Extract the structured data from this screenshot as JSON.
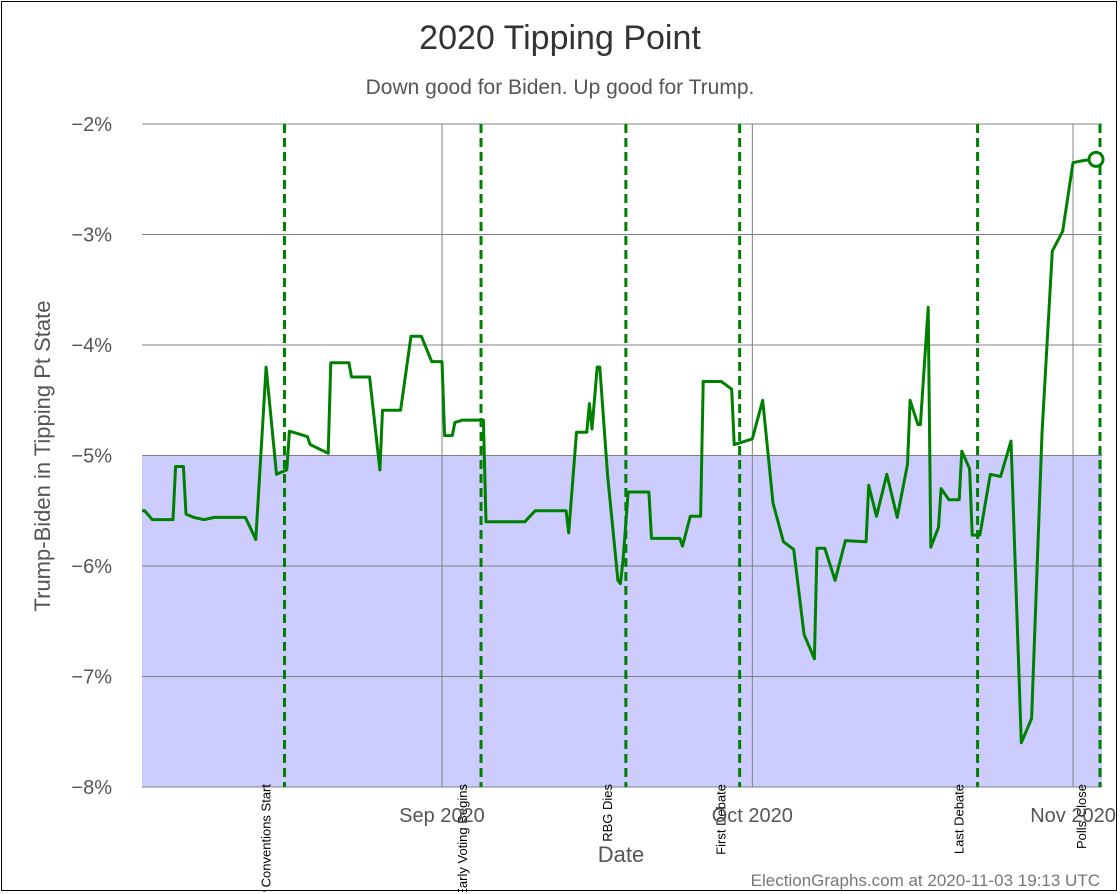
{
  "chart_data": {
    "type": "line",
    "title": "2020 Tipping Point",
    "subtitle": "Down good for Biden. Up good for Trump.",
    "xlabel": "Date",
    "ylabel": "Trump-Biden in Tipping Pt State",
    "footer": "ElectionGraphs.com at 2020-11-03 19:13 UTC",
    "x_range": [
      "2020-08-03",
      "2020-11-03"
    ],
    "ylim": [
      -8,
      -2
    ],
    "y_ticks": [
      -2,
      -3,
      -4,
      -5,
      -6,
      -7,
      -8
    ],
    "y_tick_labels": [
      "−2%",
      "−3%",
      "−4%",
      "−5%",
      "−6%",
      "−7%",
      "−8%"
    ],
    "x_ticks": [
      "2020-09-01",
      "2020-10-01",
      "2020-11-01"
    ],
    "x_tick_labels": [
      "Sep 2020",
      "Oct 2020",
      "Nov 2020"
    ],
    "grid": true,
    "colors": {
      "line": "#008000",
      "band": "#ccccff",
      "event_line": "#008000",
      "grid": "#808080",
      "text": "#444444"
    },
    "band": {
      "from": -8,
      "to": -5
    },
    "events": [
      {
        "date": "2020-08-16",
        "label": "Party Conventions Start"
      },
      {
        "date": "2020-09-04",
        "label": "Early Voting Begins"
      },
      {
        "date": "2020-09-18",
        "label": "RBG Dies"
      },
      {
        "date": "2020-09-29",
        "label": "First Debate"
      },
      {
        "date": "2020-10-22",
        "label": "Last Debate"
      },
      {
        "date": "2020-11-03",
        "label": "Polls Close"
      }
    ],
    "series": [
      {
        "points": [
          [
            "2020-08-03",
            -5.5
          ],
          [
            "2020-08-03",
            -5.5
          ],
          [
            "2020-08-04",
            -5.58
          ],
          [
            "2020-08-06",
            -5.58
          ],
          [
            "2020-08-06",
            -5.1
          ],
          [
            "2020-08-07",
            -5.1
          ],
          [
            "2020-08-07",
            -5.53
          ],
          [
            "2020-08-08",
            -5.56
          ],
          [
            "2020-08-09",
            -5.58
          ],
          [
            "2020-08-10",
            -5.56
          ],
          [
            "2020-08-13",
            -5.56
          ],
          [
            "2020-08-14",
            -5.76
          ],
          [
            "2020-08-15",
            -4.2
          ],
          [
            "2020-08-16",
            -5.17
          ],
          [
            "2020-08-17",
            -5.13
          ],
          [
            "2020-08-17",
            -4.78
          ],
          [
            "2020-08-18",
            -4.8
          ],
          [
            "2020-08-19",
            -4.83
          ],
          [
            "2020-08-19",
            -4.9
          ],
          [
            "2020-08-21",
            -4.98
          ],
          [
            "2020-08-21",
            -4.16
          ],
          [
            "2020-08-23",
            -4.16
          ],
          [
            "2020-08-23",
            -4.29
          ],
          [
            "2020-08-25",
            -4.29
          ],
          [
            "2020-08-26",
            -5.13
          ],
          [
            "2020-08-26",
            -4.59
          ],
          [
            "2020-08-28",
            -4.59
          ],
          [
            "2020-08-29",
            -3.92
          ],
          [
            "2020-08-30",
            -3.92
          ],
          [
            "2020-08-31",
            -4.15
          ],
          [
            "2020-09-01",
            -4.15
          ],
          [
            "2020-09-01",
            -4.82
          ],
          [
            "2020-09-02",
            -4.82
          ],
          [
            "2020-09-02",
            -4.7
          ],
          [
            "2020-09-03",
            -4.68
          ],
          [
            "2020-09-05",
            -4.68
          ],
          [
            "2020-09-05",
            -5.6
          ],
          [
            "2020-09-09",
            -5.6
          ],
          [
            "2020-09-10",
            -5.5
          ],
          [
            "2020-09-13",
            -5.5
          ],
          [
            "2020-09-13",
            -5.7
          ],
          [
            "2020-09-14",
            -4.79
          ],
          [
            "2020-09-15",
            -4.79
          ],
          [
            "2020-09-15",
            -4.53
          ],
          [
            "2020-09-15",
            -4.76
          ],
          [
            "2020-09-16",
            -4.2
          ],
          [
            "2020-09-16",
            -4.2
          ],
          [
            "2020-09-17",
            -5.17
          ],
          [
            "2020-09-18",
            -6.13
          ],
          [
            "2020-09-18",
            -6.16
          ],
          [
            "2020-09-18",
            -5.95
          ],
          [
            "2020-09-19",
            -5.33
          ],
          [
            "2020-09-21",
            -5.33
          ],
          [
            "2020-09-21",
            -5.75
          ],
          [
            "2020-09-24",
            -5.75
          ],
          [
            "2020-09-24",
            -5.82
          ],
          [
            "2020-09-25",
            -5.55
          ],
          [
            "2020-09-26",
            -5.55
          ],
          [
            "2020-09-26",
            -4.33
          ],
          [
            "2020-09-28",
            -4.33
          ],
          [
            "2020-09-29",
            -4.4
          ],
          [
            "2020-09-29",
            -4.9
          ],
          [
            "2020-09-30",
            -4.88
          ],
          [
            "2020-10-01",
            -4.85
          ],
          [
            "2020-10-02",
            -4.5
          ],
          [
            "2020-10-03",
            -5.43
          ],
          [
            "2020-10-04",
            -5.78
          ],
          [
            "2020-10-05",
            -5.85
          ],
          [
            "2020-10-06",
            -6.62
          ],
          [
            "2020-10-07",
            -6.84
          ],
          [
            "2020-10-07",
            -5.84
          ],
          [
            "2020-10-08",
            -5.84
          ],
          [
            "2020-10-09",
            -6.13
          ],
          [
            "2020-10-10",
            -5.77
          ],
          [
            "2020-10-12",
            -5.78
          ],
          [
            "2020-10-12",
            -5.27
          ],
          [
            "2020-10-13",
            -5.55
          ],
          [
            "2020-10-14",
            -5.17
          ],
          [
            "2020-10-15",
            -5.56
          ],
          [
            "2020-10-16",
            -5.08
          ],
          [
            "2020-10-16",
            -4.5
          ],
          [
            "2020-10-17",
            -4.72
          ],
          [
            "2020-10-17",
            -4.72
          ],
          [
            "2020-10-18",
            -3.66
          ],
          [
            "2020-10-18",
            -5.83
          ],
          [
            "2020-10-19",
            -5.65
          ],
          [
            "2020-10-19",
            -5.3
          ],
          [
            "2020-10-20",
            -5.4
          ],
          [
            "2020-10-21",
            -5.4
          ],
          [
            "2020-10-21",
            -4.96
          ],
          [
            "2020-10-22",
            -5.12
          ],
          [
            "2020-10-22",
            -5.72
          ],
          [
            "2020-10-23",
            -5.72
          ],
          [
            "2020-10-24",
            -5.17
          ],
          [
            "2020-10-25",
            -5.19
          ],
          [
            "2020-10-26",
            -4.87
          ],
          [
            "2020-10-27",
            -7.6
          ],
          [
            "2020-10-28",
            -7.38
          ],
          [
            "2020-10-29",
            -4.8
          ],
          [
            "2020-10-30",
            -3.15
          ],
          [
            "2020-10-31",
            -2.97
          ],
          [
            "2020-11-01",
            -2.35
          ],
          [
            "2020-11-02",
            -2.33
          ],
          [
            "2020-11-03",
            -2.32
          ]
        ]
      }
    ]
  }
}
